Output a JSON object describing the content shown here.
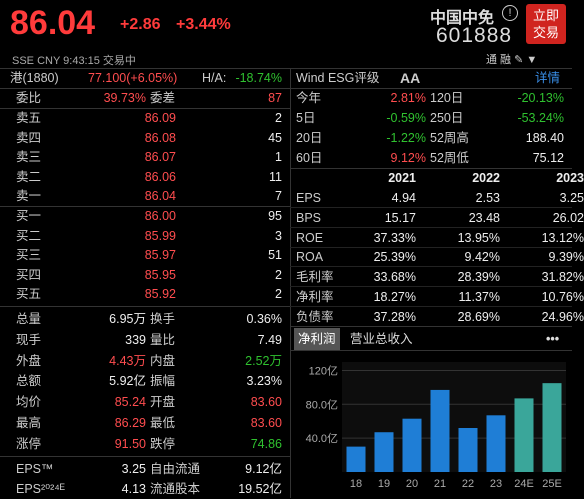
{
  "header": {
    "price": "86.04",
    "change": "+2.86",
    "change_pct": "+3.44%",
    "subline": "SSE  CNY  9:43:15  交易中",
    "name": "中国中免",
    "code": "601888",
    "trade_btn": "立即交易",
    "icons": "通  融  ✎  ▼"
  },
  "hk": {
    "label": "港(1880)",
    "value": "77.100(+6.05%)",
    "ha_label": "H/A:",
    "ha_value": "-18.74%"
  },
  "wind": {
    "label": "Wind ESG评级",
    "rating": "AA",
    "detail": "详情"
  },
  "ratio": {
    "label": "委比",
    "value": "39.73%",
    "diff_label": "委差",
    "diff_value": "87"
  },
  "asks": [
    {
      "label": "卖五",
      "price": "86.09",
      "vol": "2"
    },
    {
      "label": "卖四",
      "price": "86.08",
      "vol": "45"
    },
    {
      "label": "卖三",
      "price": "86.07",
      "vol": "1"
    },
    {
      "label": "卖二",
      "price": "86.06",
      "vol": "11"
    },
    {
      "label": "卖一",
      "price": "86.04",
      "vol": "7"
    }
  ],
  "bids": [
    {
      "label": "买一",
      "price": "86.00",
      "vol": "95"
    },
    {
      "label": "买二",
      "price": "85.99",
      "vol": "3"
    },
    {
      "label": "买三",
      "price": "85.97",
      "vol": "51"
    },
    {
      "label": "买四",
      "price": "85.95",
      "vol": "2"
    },
    {
      "label": "买五",
      "price": "85.92",
      "vol": "2"
    }
  ],
  "stats": [
    {
      "l1": "总量",
      "v1": "6.95万",
      "c1": "white",
      "l2": "换手",
      "v2": "0.36%",
      "c2": "white"
    },
    {
      "l1": "现手",
      "v1": "339",
      "c1": "white",
      "l2": "量比",
      "v2": "7.49",
      "c2": "white"
    },
    {
      "l1": "外盘",
      "v1": "4.43万",
      "c1": "red",
      "l2": "内盘",
      "v2": "2.52万",
      "c2": "green"
    },
    {
      "l1": "总额",
      "v1": "5.92亿",
      "c1": "white",
      "l2": "振幅",
      "v2": "3.23%",
      "c2": "white"
    },
    {
      "l1": "均价",
      "v1": "85.24",
      "c1": "red",
      "l2": "开盘",
      "v2": "83.60",
      "c2": "red"
    },
    {
      "l1": "最高",
      "v1": "86.29",
      "c1": "red",
      "l2": "最低",
      "v2": "83.60",
      "c2": "red"
    },
    {
      "l1": "涨停",
      "v1": "91.50",
      "c1": "red",
      "l2": "跌停",
      "v2": "74.86",
      "c2": "green"
    },
    {
      "l1": "EPS™",
      "v1": "3.25",
      "c1": "white",
      "l2": "自由流通",
      "v2": "9.12亿",
      "c2": "white"
    },
    {
      "l1": "EPS²⁰²⁴ᴱ",
      "v1": "4.13",
      "c1": "white",
      "l2": "流通股本",
      "v2": "19.52亿",
      "c2": "white"
    }
  ],
  "returns": [
    {
      "l1": "今年",
      "v1": "2.81%",
      "c1": "red",
      "l2": "120日",
      "v2": "-20.13%",
      "c2": "green"
    },
    {
      "l1": "5日",
      "v1": "-0.59%",
      "c1": "green",
      "l2": "250日",
      "v2": "-53.24%",
      "c2": "green"
    },
    {
      "l1": "20日",
      "v1": "-1.22%",
      "c1": "green",
      "l2": "52周高",
      "v2": "188.40",
      "c2": "white"
    },
    {
      "l1": "60日",
      "v1": "9.12%",
      "c1": "red",
      "l2": "52周低",
      "v2": "75.12",
      "c2": "white"
    }
  ],
  "fin": {
    "years": [
      "2021",
      "2022",
      "2023"
    ],
    "rows": [
      {
        "label": "EPS",
        "vals": [
          "4.94",
          "2.53",
          "3.25"
        ]
      },
      {
        "label": "BPS",
        "vals": [
          "15.17",
          "23.48",
          "26.02"
        ]
      },
      {
        "label": "ROE",
        "vals": [
          "37.33%",
          "13.95%",
          "13.12%"
        ]
      },
      {
        "label": "ROA",
        "vals": [
          "25.39%",
          "9.42%",
          "9.39%"
        ]
      },
      {
        "label": "毛利率",
        "vals": [
          "33.68%",
          "28.39%",
          "31.82%"
        ]
      },
      {
        "label": "净利率",
        "vals": [
          "18.27%",
          "11.37%",
          "10.76%"
        ]
      },
      {
        "label": "负债率",
        "vals": [
          "37.28%",
          "28.69%",
          "24.96%"
        ]
      }
    ]
  },
  "tabs": {
    "active": "净利润",
    "other": "营业总收入",
    "more": "•••"
  },
  "chart_data": {
    "type": "bar",
    "categories": [
      "18",
      "19",
      "20",
      "21",
      "22",
      "23",
      "24E",
      "25E"
    ],
    "values": [
      30,
      47,
      63,
      97,
      52,
      67,
      87,
      105
    ],
    "estimate": [
      false,
      false,
      false,
      false,
      false,
      false,
      true,
      true
    ],
    "yticks": [
      "120亿",
      "80.0亿",
      "40.0亿"
    ],
    "ytick_values": [
      120,
      80,
      40
    ],
    "ylim": [
      0,
      130
    ],
    "colors": {
      "actual": "#1f7ed6",
      "estimate": "#3aa69a"
    }
  }
}
